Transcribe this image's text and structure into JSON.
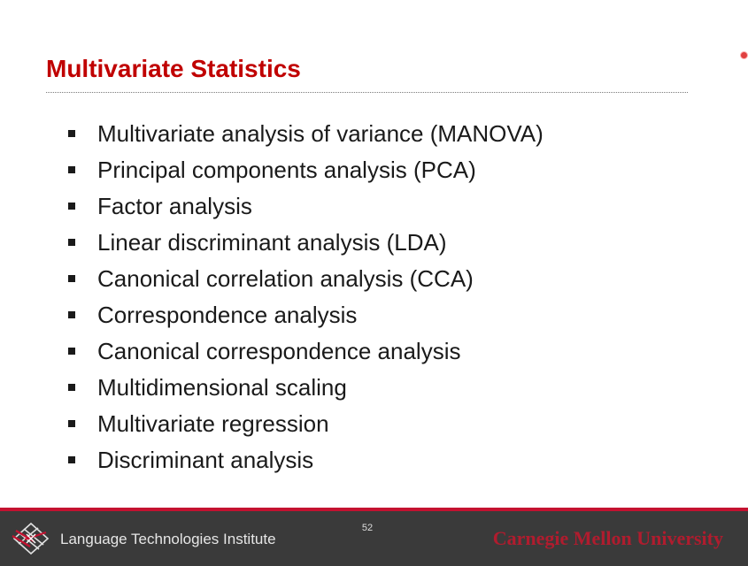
{
  "slide": {
    "title": "Multivariate Statistics",
    "bullets": [
      "Multivariate analysis of variance (MANOVA)",
      "Principal components analysis (PCA)",
      "Factor analysis",
      "Linear discriminant analysis (LDA)",
      "Canonical correlation analysis (CCA)",
      "Correspondence analysis",
      "Canonical correspondence analysis",
      "Multidimensional scaling",
      "Multivariate regression",
      "Discriminant analysis"
    ]
  },
  "footer": {
    "institute": "Language Technologies Institute",
    "page_number": "52",
    "university": "Carnegie Mellon University",
    "logo_icon": "lti-logo-icon"
  },
  "colors": {
    "title": "#c00000",
    "footer_bg": "#3a3a3a",
    "footer_accent": "#c41230",
    "university_text": "#b01c2e"
  }
}
